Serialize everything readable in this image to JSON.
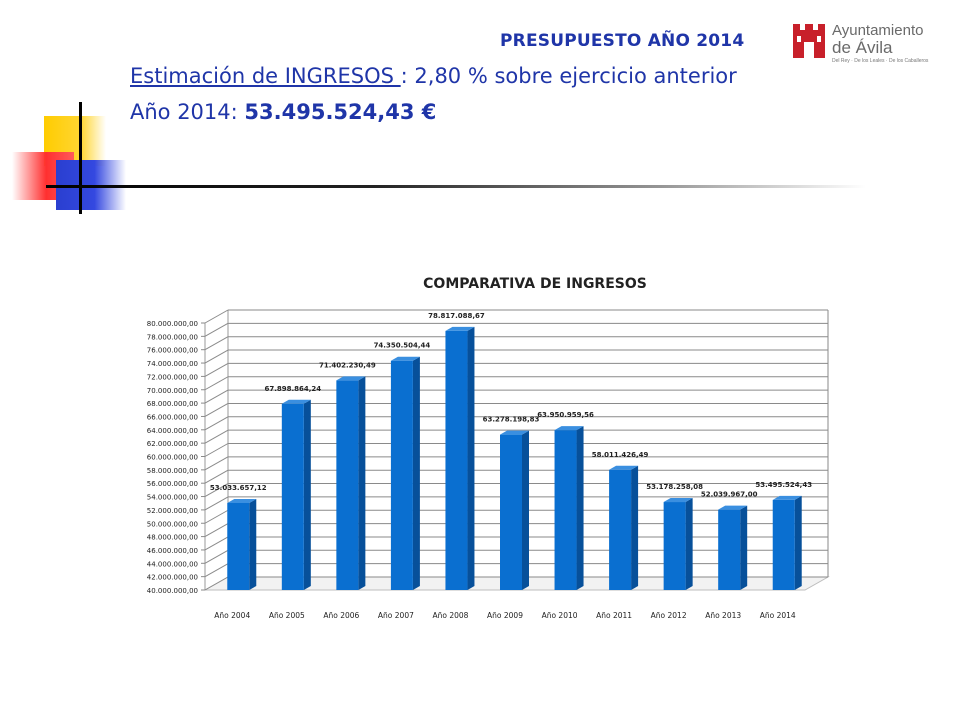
{
  "header": {
    "title": "PRESUPUESTO AÑO 2014",
    "subtitle_underlined": "Estimación de INGRESOS ",
    "subtitle_rest": ": 2,80 % sobre ejercicio anterior",
    "year_label": "Año 2014: ",
    "year_value": "53.495.524,43 €"
  },
  "logo": {
    "line1": "Ayuntamiento",
    "line2": "de Ávila",
    "line3": "Del Rey · De los Leales · De los Caballeros"
  },
  "colors": {
    "accent_blue": "#1f35a8",
    "bar_front": "#0a6fd0",
    "bar_side": "#07509a",
    "bar_top": "#3a8fe0"
  },
  "chart_data": {
    "type": "bar",
    "title": "COMPARATIVA DE INGRESOS",
    "categories": [
      "Año 2004",
      "Año 2005",
      "Año 2006",
      "Año 2007",
      "Año 2008",
      "Año 2009",
      "Año 2010",
      "Año 2011",
      "Año 2012",
      "Año 2013",
      "Año 2014"
    ],
    "values": [
      53033657.12,
      67898864.24,
      71402230.49,
      74350504.44,
      78817088.67,
      63278198.83,
      63950959.56,
      58011426.49,
      53178258.08,
      52039967.0,
      53495524.43
    ],
    "value_labels": [
      "53.033.657,12",
      "67.898.864,24",
      "71.402.230,49",
      "74.350.504,44",
      "78.817.088,67",
      "63.278.198,83",
      "63.950.959,56",
      "58.011.426,49",
      "53.178.258,08",
      "52.039.967,00",
      "53.495.524,43"
    ],
    "ylim": [
      40000000,
      80000000
    ],
    "ytick_step": 2000000,
    "ytick_labels": [
      "40.000.000,00",
      "42.000.000,00",
      "44.000.000,00",
      "46.000.000,00",
      "48.000.000,00",
      "50.000.000,00",
      "52.000.000,00",
      "54.000.000,00",
      "56.000.000,00",
      "58.000.000,00",
      "60.000.000,00",
      "62.000.000,00",
      "64.000.000,00",
      "66.000.000,00",
      "68.000.000,00",
      "70.000.000,00",
      "72.000.000,00",
      "74.000.000,00",
      "76.000.000,00",
      "78.000.000,00",
      "80.000.000,00"
    ],
    "grid": true,
    "legend": "none"
  }
}
